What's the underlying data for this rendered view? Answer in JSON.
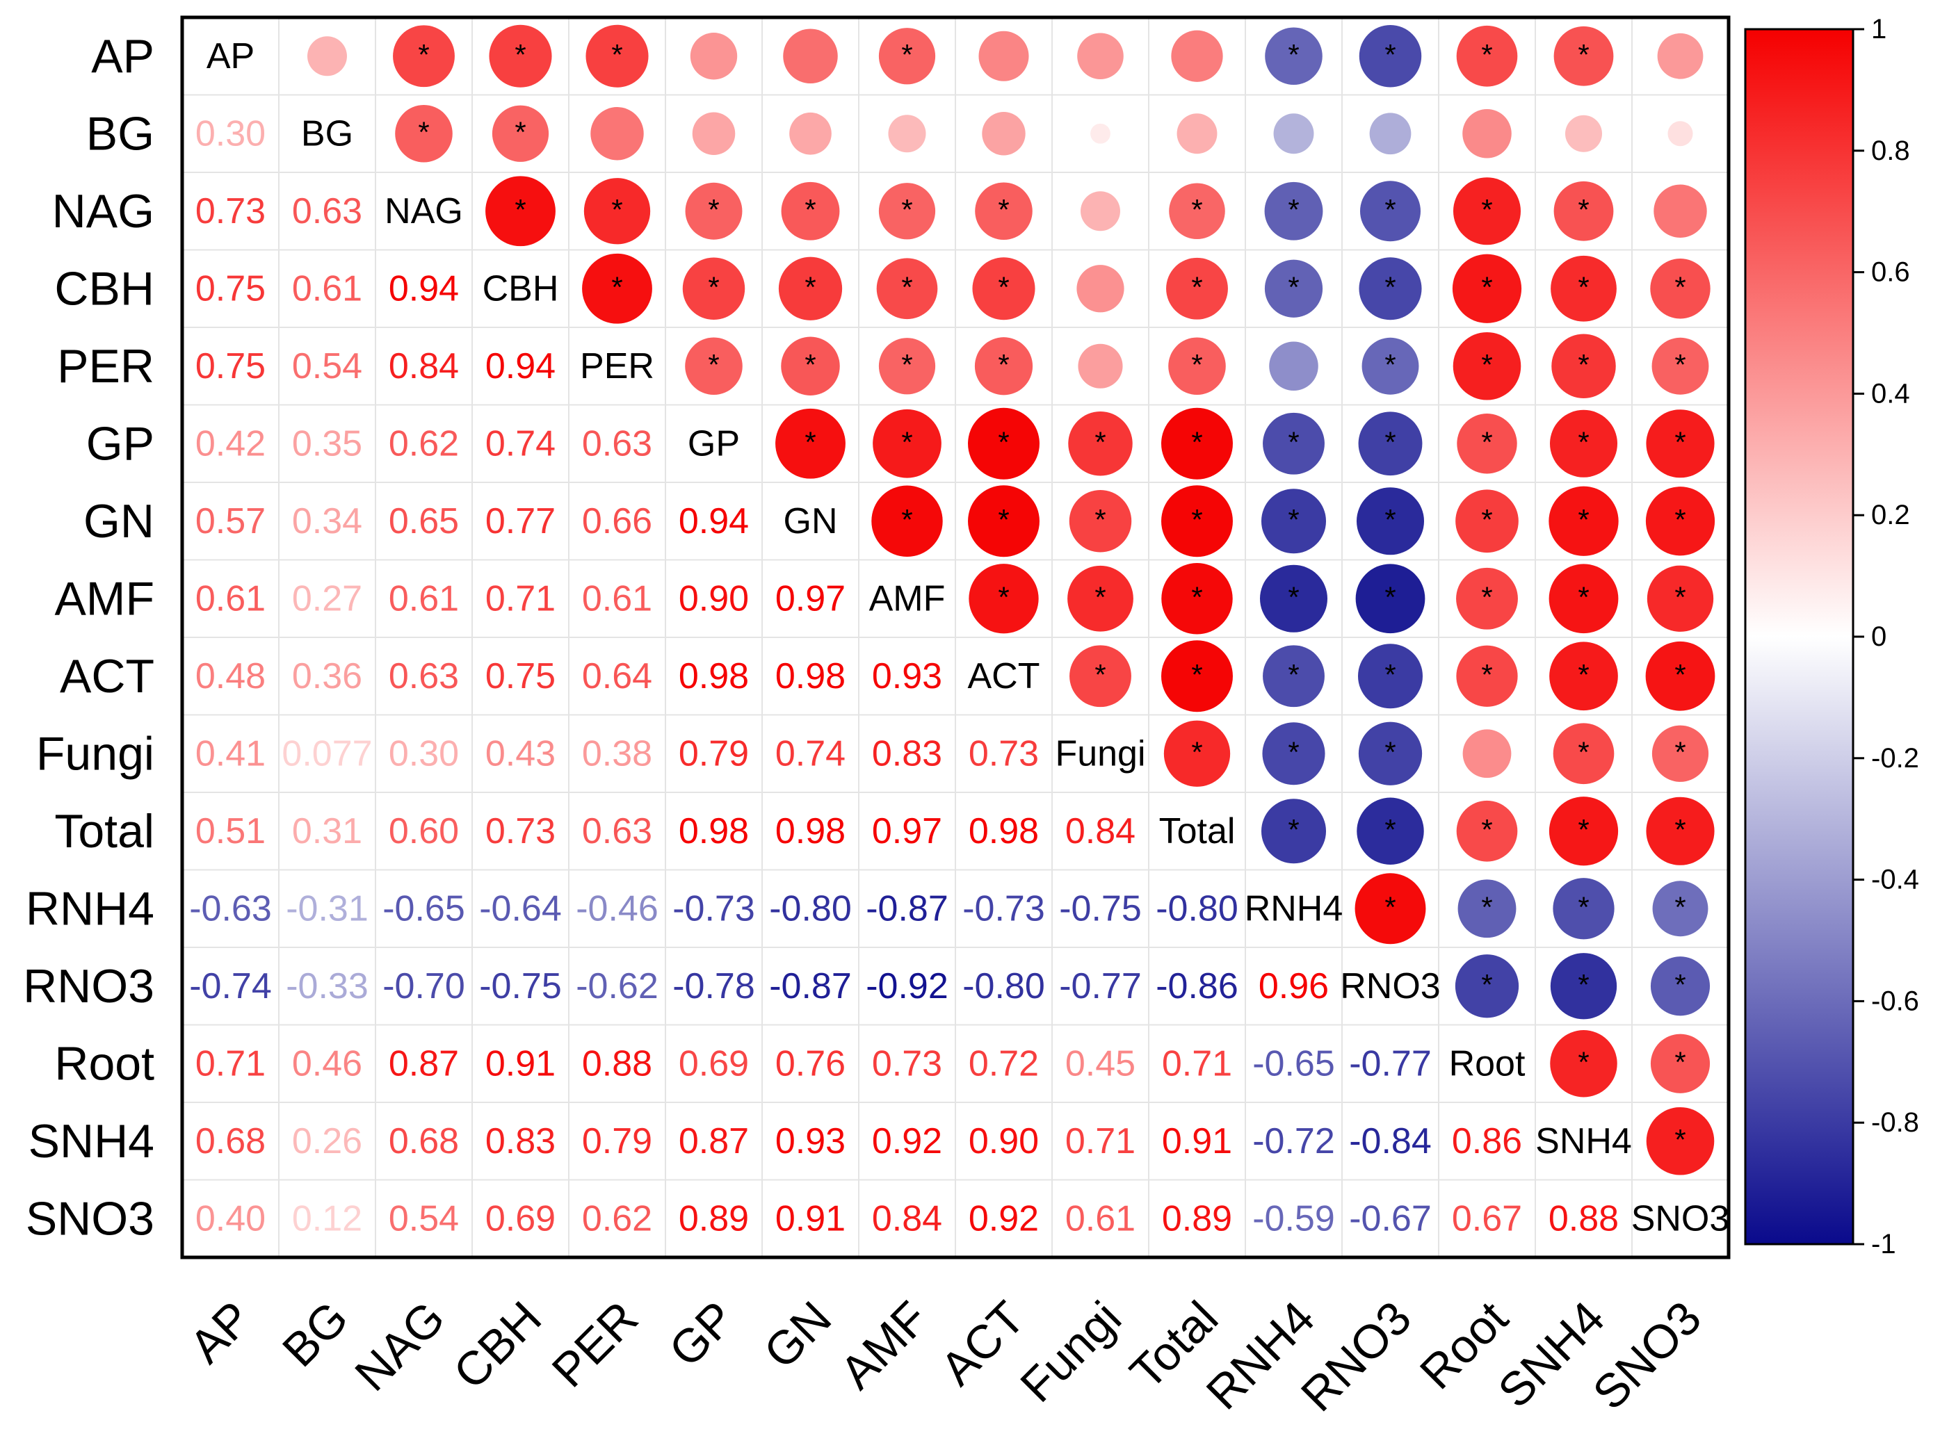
{
  "chart_data": {
    "type": "heatmap",
    "subtype": "correlation-matrix",
    "variables": [
      "AP",
      "BG",
      "NAG",
      "CBH",
      "PER",
      "GP",
      "GN",
      "AMF",
      "ACT",
      "Fungi",
      "Total",
      "RNH4",
      "RNO3",
      "Root",
      "SNH4",
      "SNO3"
    ],
    "matrix": [
      [
        1,
        0.3,
        0.73,
        0.75,
        0.75,
        0.42,
        0.57,
        0.61,
        0.48,
        0.41,
        0.51,
        -0.63,
        -0.74,
        0.71,
        0.68,
        0.4
      ],
      [
        0.3,
        1,
        0.63,
        0.61,
        0.54,
        0.35,
        0.34,
        0.27,
        0.36,
        0.077,
        0.31,
        -0.31,
        -0.33,
        0.46,
        0.26,
        0.12
      ],
      [
        0.73,
        0.63,
        1,
        0.94,
        0.84,
        0.62,
        0.65,
        0.61,
        0.63,
        0.3,
        0.6,
        -0.65,
        -0.7,
        0.87,
        0.68,
        0.54
      ],
      [
        0.75,
        0.61,
        0.94,
        1,
        0.94,
        0.74,
        0.77,
        0.71,
        0.75,
        0.43,
        0.73,
        -0.64,
        -0.75,
        0.91,
        0.83,
        0.69
      ],
      [
        0.75,
        0.54,
        0.84,
        0.94,
        1,
        0.63,
        0.66,
        0.61,
        0.64,
        0.38,
        0.63,
        -0.46,
        -0.62,
        0.88,
        0.79,
        0.62
      ],
      [
        0.42,
        0.35,
        0.62,
        0.74,
        0.63,
        1,
        0.94,
        0.9,
        0.98,
        0.79,
        0.98,
        -0.73,
        -0.78,
        0.69,
        0.87,
        0.89
      ],
      [
        0.57,
        0.34,
        0.65,
        0.77,
        0.66,
        0.94,
        1,
        0.97,
        0.98,
        0.74,
        0.98,
        -0.8,
        -0.87,
        0.76,
        0.93,
        0.91
      ],
      [
        0.61,
        0.27,
        0.61,
        0.71,
        0.61,
        0.9,
        0.97,
        1,
        0.93,
        0.83,
        0.97,
        -0.87,
        -0.92,
        0.73,
        0.92,
        0.84
      ],
      [
        0.48,
        0.36,
        0.63,
        0.75,
        0.64,
        0.98,
        0.98,
        0.93,
        1,
        0.73,
        0.98,
        -0.73,
        -0.8,
        0.72,
        0.9,
        0.92
      ],
      [
        0.41,
        0.077,
        0.3,
        0.43,
        0.38,
        0.79,
        0.74,
        0.83,
        0.73,
        1,
        0.84,
        -0.75,
        -0.77,
        0.45,
        0.71,
        0.61
      ],
      [
        0.51,
        0.31,
        0.6,
        0.73,
        0.63,
        0.98,
        0.98,
        0.97,
        0.98,
        0.84,
        1,
        -0.8,
        -0.86,
        0.71,
        0.91,
        0.89
      ],
      [
        -0.63,
        -0.31,
        -0.65,
        -0.64,
        -0.46,
        -0.73,
        -0.8,
        -0.87,
        -0.73,
        -0.75,
        -0.8,
        1,
        0.96,
        -0.65,
        -0.72,
        -0.59
      ],
      [
        -0.74,
        -0.33,
        -0.7,
        -0.75,
        -0.62,
        -0.78,
        -0.87,
        -0.92,
        -0.8,
        -0.77,
        -0.86,
        0.96,
        1,
        -0.77,
        -0.84,
        -0.67
      ],
      [
        0.71,
        0.46,
        0.87,
        0.91,
        0.88,
        0.69,
        0.76,
        0.73,
        0.72,
        0.45,
        0.71,
        -0.65,
        -0.77,
        1,
        0.86,
        0.67
      ],
      [
        0.68,
        0.26,
        0.68,
        0.83,
        0.79,
        0.87,
        0.93,
        0.92,
        0.9,
        0.71,
        0.91,
        -0.72,
        -0.84,
        0.86,
        1,
        0.88
      ],
      [
        0.4,
        0.12,
        0.54,
        0.69,
        0.62,
        0.89,
        0.91,
        0.84,
        0.92,
        0.61,
        0.89,
        -0.59,
        -0.67,
        0.67,
        0.88,
        1
      ]
    ],
    "lower_labels": [
      [],
      [
        "0.30"
      ],
      [
        "0.73",
        "0.63"
      ],
      [
        "0.75",
        "0.61",
        "0.94"
      ],
      [
        "0.75",
        "0.54",
        "0.84",
        "0.94"
      ],
      [
        "0.42",
        "0.35",
        "0.62",
        "0.74",
        "0.63"
      ],
      [
        "0.57",
        "0.34",
        "0.65",
        "0.77",
        "0.66",
        "0.94"
      ],
      [
        "0.61",
        "0.27",
        "0.61",
        "0.71",
        "0.61",
        "0.90",
        "0.97"
      ],
      [
        "0.48",
        "0.36",
        "0.63",
        "0.75",
        "0.64",
        "0.98",
        "0.98",
        "0.93"
      ],
      [
        "0.41",
        "0.077",
        "0.30",
        "0.43",
        "0.38",
        "0.79",
        "0.74",
        "0.83",
        "0.73"
      ],
      [
        "0.51",
        "0.31",
        "0.60",
        "0.73",
        "0.63",
        "0.98",
        "0.98",
        "0.97",
        "0.98",
        "0.84"
      ],
      [
        "-0.63",
        "-0.31",
        "-0.65",
        "-0.64",
        "-0.46",
        "-0.73",
        "-0.80",
        "-0.87",
        "-0.73",
        "-0.75",
        "-0.80"
      ],
      [
        "-0.74",
        "-0.33",
        "-0.70",
        "-0.75",
        "-0.62",
        "-0.78",
        "-0.87",
        "-0.92",
        "-0.80",
        "-0.77",
        "-0.86",
        "0.96"
      ],
      [
        "0.71",
        "0.46",
        "0.87",
        "0.91",
        "0.88",
        "0.69",
        "0.76",
        "0.73",
        "0.72",
        "0.45",
        "0.71",
        "-0.65",
        "-0.77"
      ],
      [
        "0.68",
        "0.26",
        "0.68",
        "0.83",
        "0.79",
        "0.87",
        "0.93",
        "0.92",
        "0.90",
        "0.71",
        "0.91",
        "-0.72",
        "-0.84",
        "0.86"
      ],
      [
        "0.40",
        "0.12",
        "0.54",
        "0.69",
        "0.62",
        "0.89",
        "0.91",
        "0.84",
        "0.92",
        "0.61",
        "0.89",
        "-0.59",
        "-0.67",
        "0.67",
        "0.88"
      ]
    ],
    "significant_upper": [
      [
        0,
        2
      ],
      [
        0,
        3
      ],
      [
        0,
        4
      ],
      [
        0,
        7
      ],
      [
        0,
        11
      ],
      [
        0,
        12
      ],
      [
        0,
        13
      ],
      [
        0,
        14
      ],
      [
        1,
        2
      ],
      [
        1,
        3
      ],
      [
        2,
        3
      ],
      [
        2,
        4
      ],
      [
        2,
        5
      ],
      [
        2,
        6
      ],
      [
        2,
        7
      ],
      [
        2,
        8
      ],
      [
        2,
        10
      ],
      [
        2,
        11
      ],
      [
        2,
        12
      ],
      [
        2,
        13
      ],
      [
        2,
        14
      ],
      [
        3,
        4
      ],
      [
        3,
        5
      ],
      [
        3,
        6
      ],
      [
        3,
        7
      ],
      [
        3,
        8
      ],
      [
        3,
        10
      ],
      [
        3,
        11
      ],
      [
        3,
        12
      ],
      [
        3,
        13
      ],
      [
        3,
        14
      ],
      [
        3,
        15
      ],
      [
        4,
        5
      ],
      [
        4,
        6
      ],
      [
        4,
        7
      ],
      [
        4,
        8
      ],
      [
        4,
        10
      ],
      [
        4,
        12
      ],
      [
        4,
        13
      ],
      [
        4,
        14
      ],
      [
        4,
        15
      ],
      [
        5,
        6
      ],
      [
        5,
        7
      ],
      [
        5,
        8
      ],
      [
        5,
        9
      ],
      [
        5,
        10
      ],
      [
        5,
        11
      ],
      [
        5,
        12
      ],
      [
        5,
        13
      ],
      [
        5,
        14
      ],
      [
        5,
        15
      ],
      [
        6,
        7
      ],
      [
        6,
        8
      ],
      [
        6,
        9
      ],
      [
        6,
        10
      ],
      [
        6,
        11
      ],
      [
        6,
        12
      ],
      [
        6,
        13
      ],
      [
        6,
        14
      ],
      [
        6,
        15
      ],
      [
        7,
        8
      ],
      [
        7,
        9
      ],
      [
        7,
        10
      ],
      [
        7,
        11
      ],
      [
        7,
        12
      ],
      [
        7,
        13
      ],
      [
        7,
        14
      ],
      [
        7,
        15
      ],
      [
        8,
        9
      ],
      [
        8,
        10
      ],
      [
        8,
        11
      ],
      [
        8,
        12
      ],
      [
        8,
        13
      ],
      [
        8,
        14
      ],
      [
        8,
        15
      ],
      [
        9,
        10
      ],
      [
        9,
        11
      ],
      [
        9,
        12
      ],
      [
        9,
        14
      ],
      [
        9,
        15
      ],
      [
        10,
        11
      ],
      [
        10,
        12
      ],
      [
        10,
        13
      ],
      [
        10,
        14
      ],
      [
        10,
        15
      ],
      [
        11,
        12
      ],
      [
        11,
        13
      ],
      [
        11,
        14
      ],
      [
        11,
        15
      ],
      [
        12,
        13
      ],
      [
        12,
        14
      ],
      [
        12,
        15
      ],
      [
        13,
        14
      ],
      [
        13,
        15
      ],
      [
        14,
        15
      ]
    ],
    "significance_marker": "*",
    "colorbar": {
      "range": [
        -1,
        1
      ],
      "ticks": [
        "1",
        "0.8",
        "0.6",
        "0.4",
        "0.2",
        "0",
        "-0.2",
        "-0.4",
        "-0.6",
        "-0.8",
        "-1"
      ],
      "colors": {
        "negative": "#0a0a8c",
        "zero": "#ffffff",
        "positive": "#f50000"
      }
    },
    "title": "",
    "xlabel": "",
    "ylabel": ""
  }
}
